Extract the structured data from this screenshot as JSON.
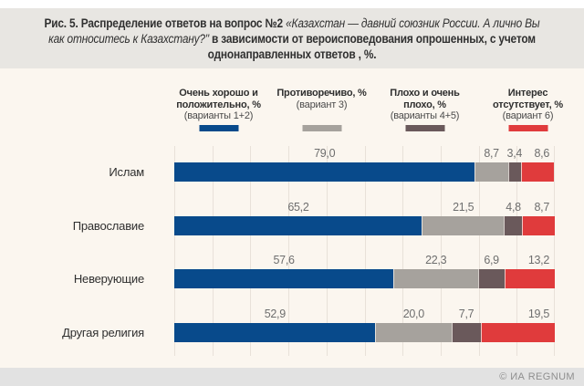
{
  "title": {
    "parts": [
      {
        "text": "Рис. 5. Распределение ответов на вопрос №2 ",
        "style": "bold"
      },
      {
        "text": "«Казахстан — давний союзник России. А лично Вы как относитесь к Казахстану?\" ",
        "style": "italic"
      },
      {
        "text": "в зависимости от вероисповедования опрошенных, с учетом однонаправленных ответов , %.",
        "style": "bold"
      }
    ]
  },
  "legend": [
    {
      "title": "Очень хорошо и положительно, %",
      "variant": "(варианты 1+2)",
      "color": "#084a8b"
    },
    {
      "title": "Противоречиво, %",
      "variant": "(вариант 3)",
      "color": "#a6a29d"
    },
    {
      "title": "Плохо и очень плохо, %",
      "variant": "(варианты 4+5)",
      "color": "#6a595b"
    },
    {
      "title": "Интерес отсутствует, %",
      "variant": "(вариант 6)",
      "color": "#e03b3c"
    }
  ],
  "chart_data": {
    "type": "bar",
    "orientation": "horizontal-stacked",
    "title": "Распределение ответов на вопрос №2 в зависимости от вероисповедования опрошенных, %",
    "categories": [
      "Ислам",
      "Православие",
      "Неверующие",
      "Другая религия"
    ],
    "series": [
      {
        "name": "Очень хорошо и положительно, % (варианты 1+2)",
        "color": "#084a8b",
        "values": [
          79.0,
          65.2,
          57.6,
          52.9
        ]
      },
      {
        "name": "Противоречиво, % (вариант 3)",
        "color": "#a6a29d",
        "values": [
          8.7,
          21.5,
          22.3,
          20.0
        ]
      },
      {
        "name": "Плохо и очень плохо, % (варианты 4+5)",
        "color": "#6a595b",
        "values": [
          3.4,
          4.8,
          6.9,
          7.7
        ]
      },
      {
        "name": "Интерес отсутствует, % (вариант 6)",
        "color": "#e03b3c",
        "values": [
          8.6,
          8.7,
          13.2,
          19.5
        ]
      }
    ],
    "value_labels": [
      [
        "79,0",
        "8,7",
        "3,4",
        "8,6"
      ],
      [
        "65,2",
        "21,5",
        "4,8",
        "8,7"
      ],
      [
        "57,6",
        "22,3",
        "6,9",
        "13,2"
      ],
      [
        "52,9",
        "20,0",
        "7,7",
        "19,5"
      ]
    ],
    "xlim": [
      0,
      100
    ],
    "grid": {
      "axis": "x",
      "step_percent": 10,
      "visible": true
    },
    "legend_position": "top"
  },
  "footer": {
    "credit": "© ИА REGNUM"
  },
  "colors": {
    "title_band_bg": "#e8e6e2",
    "chart_bg": "#fbf6ef",
    "footer_bg": "#e2e2e2",
    "gridline": "#e8e1d9",
    "value_text": "#6e6e6e",
    "category_text": "#2f2f2f",
    "title_text": "#303030",
    "footer_text": "#8f8f8f"
  }
}
